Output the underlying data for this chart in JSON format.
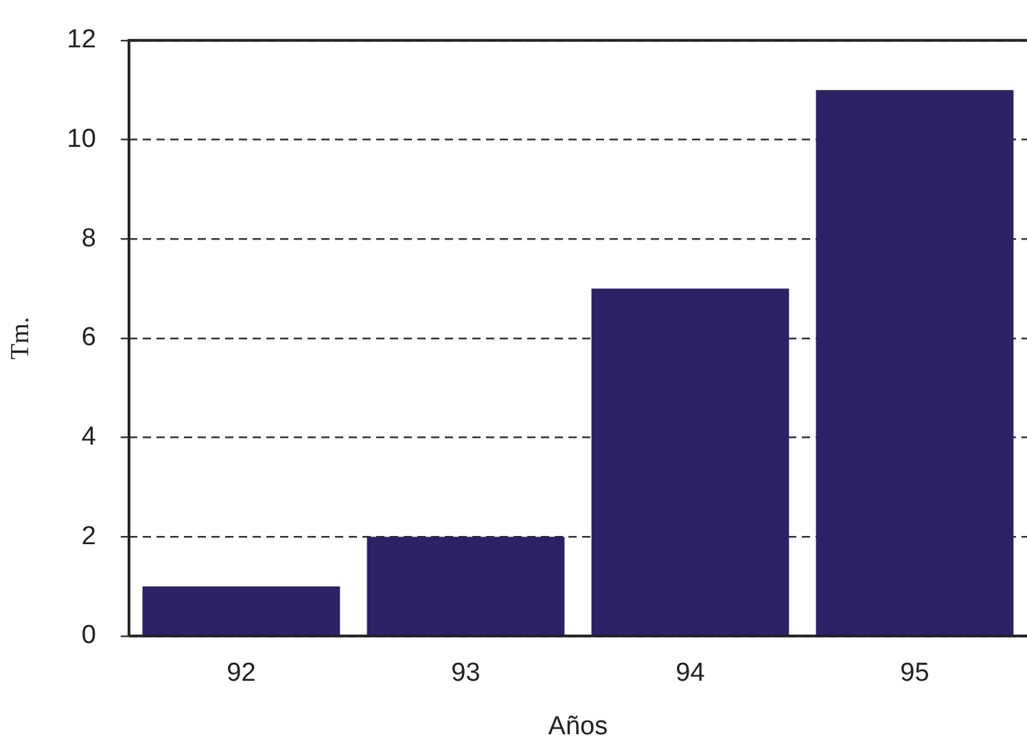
{
  "chart_data": {
    "type": "bar",
    "xlabel": "Años",
    "ylabel": "Tm.",
    "categories": [
      "92",
      "93",
      "94",
      "95"
    ],
    "values": [
      1,
      2,
      7,
      11
    ],
    "color": "#2e2166",
    "ylim": [
      0,
      12
    ],
    "yticks": [
      0,
      2,
      4,
      6,
      8,
      10,
      12
    ],
    "grid": "y",
    "legend": false
  }
}
